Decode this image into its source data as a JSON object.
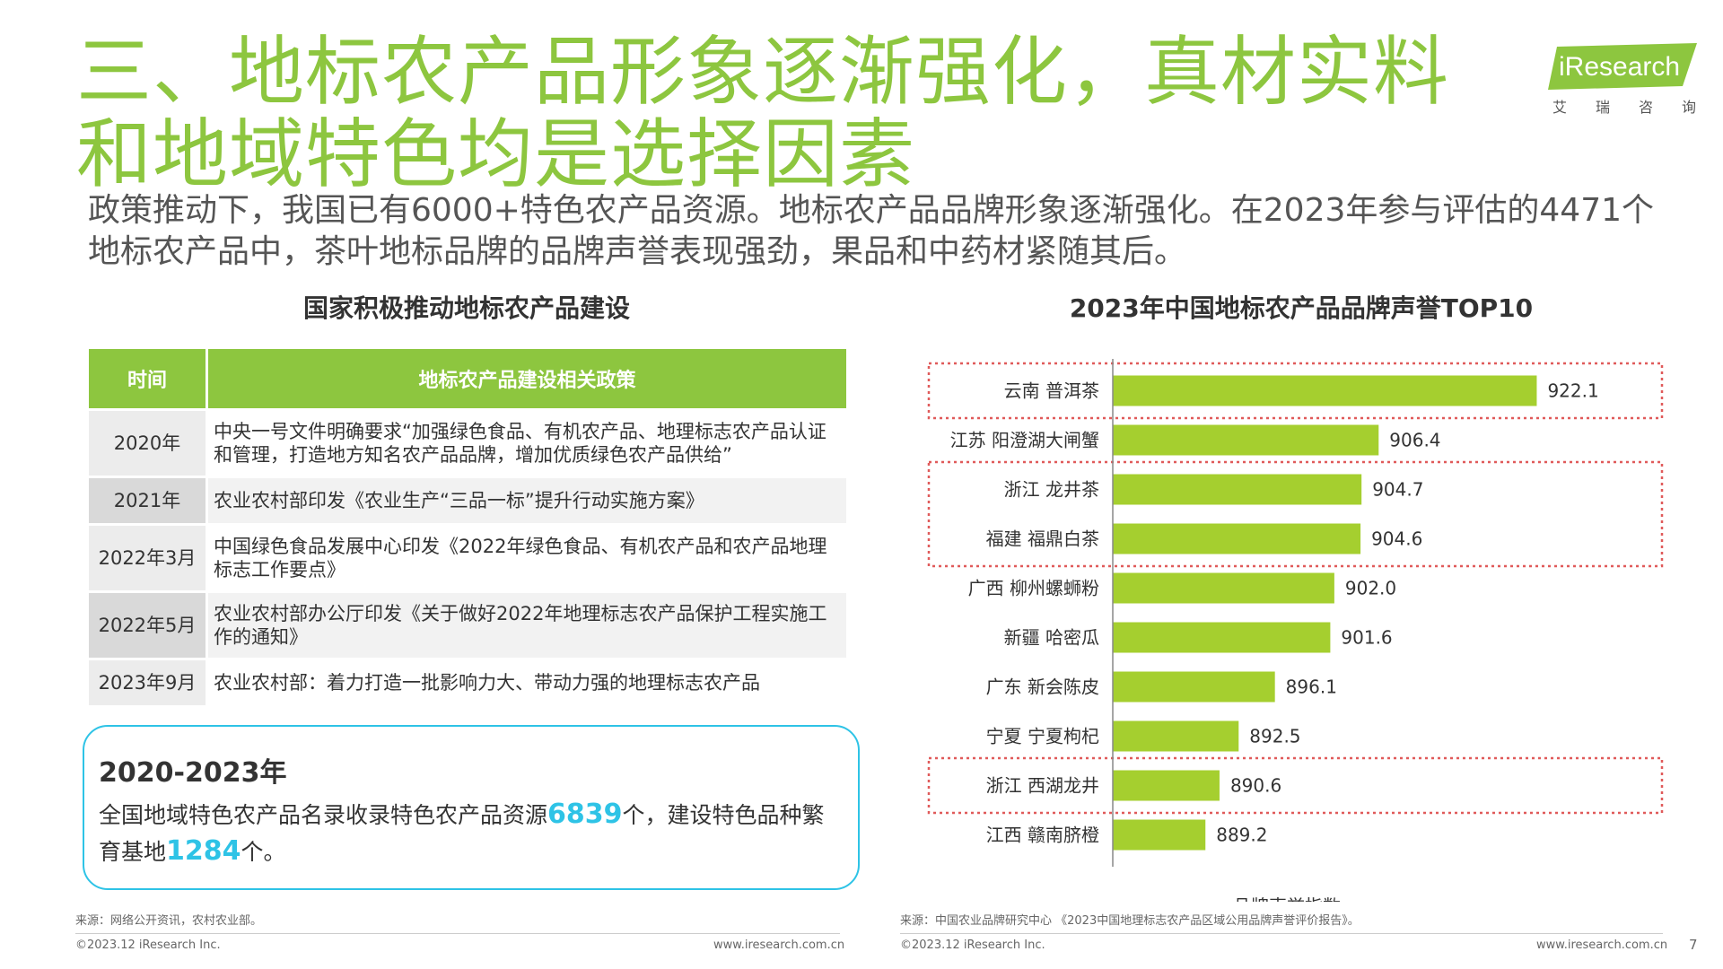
{
  "title": "三、地标农产品形象逐渐强化，真材实料和地域特色均是选择因素",
  "logo": {
    "text": "iResearch",
    "subtitle": [
      "艾",
      "瑞",
      "咨",
      "询"
    ],
    "color": "#8dc63f"
  },
  "subtitle": "政策推动下，我国已有6000+特色农产品资源。地标农产品品牌形象逐渐强化。在2023年参与评估的4471个地标农产品中，茶叶地标品牌的品牌声誉表现强劲，果品和中药材紧随其后。",
  "left": {
    "heading": "国家积极推动地标农产品建设",
    "table": {
      "headers": [
        "时间",
        "地标农产品建设相关政策"
      ],
      "rows": [
        [
          "2020年",
          "中央一号文件明确要求“加强绿色食品、有机农产品、地理标志农产品认证和管理，打造地方知名农产品品牌，增加优质绿色农产品供给”"
        ],
        [
          "2021年",
          "农业农村部印发《农业生产“三品一标”提升行动实施方案》"
        ],
        [
          "2022年3月",
          "中国绿色食品发展中心印发《2022年绿色食品、有机农产品和农产品地理标志工作要点》"
        ],
        [
          "2022年5月",
          "农业农村部办公厅印发《关于做好2022年地理标志农产品保护工程实施工作的通知》"
        ],
        [
          "2023年9月",
          "农业农村部：着力打造一批影响力大、带动力强的地理标志农产品"
        ]
      ]
    },
    "stat": {
      "year": "2020-2023年",
      "text_1": "全国地域特色农产品名录收录特色农产品资源",
      "num_1": "6839",
      "text_2": "个，建设特色品种繁育基地",
      "num_2": "1284",
      "text_3": "个。"
    },
    "source": "来源：网络公开资讯，农村农业部。",
    "copyright": "©2023.12 iResearch Inc.",
    "website": "www.iresearch.com.cn"
  },
  "right": {
    "heading": "2023年中国地标农产品品牌声誉TOP10",
    "source": "来源：中国农业品牌研究中心 《2023中国地理标志农产品区域公用品牌声誉评价报告》。",
    "copyright": "©2023.12 iResearch Inc.",
    "website": "www.iresearch.com.cn"
  },
  "page_number": "7",
  "colors": {
    "accent": "#8dc63f",
    "bar": "#a5cf2f",
    "highlight_box": "#e05a5a",
    "stat_number": "#2ec3e6"
  },
  "chart_data": {
    "type": "bar",
    "orientation": "horizontal",
    "title": "2023年中国地标农产品品牌声誉TOP10",
    "categories": [
      "云南 普洱茶",
      "江苏 阳澄湖大闸蟹",
      "浙江 龙井茶",
      "福建 福鼎白茶",
      "广西 柳州螺蛳粉",
      "新疆 哈密瓜",
      "广东  新会陈皮",
      "宁夏  宁夏枸杞",
      "浙江  西湖龙井",
      "江西  赣南脐橙"
    ],
    "series": [
      {
        "name": "品牌声誉指数",
        "values": [
          922.1,
          906.4,
          904.7,
          904.6,
          902.0,
          901.6,
          896.1,
          892.5,
          890.6,
          889.2
        ]
      }
    ],
    "value_labels": [
      "922.1",
      "906.4",
      "904.7",
      "904.6",
      "902.0",
      "901.6",
      "896.1",
      "892.5",
      "890.6",
      "889.2"
    ],
    "highlighted_groups": [
      [
        0
      ],
      [
        2,
        3
      ],
      [
        8
      ]
    ],
    "legend": "bottom",
    "grid": false
  }
}
